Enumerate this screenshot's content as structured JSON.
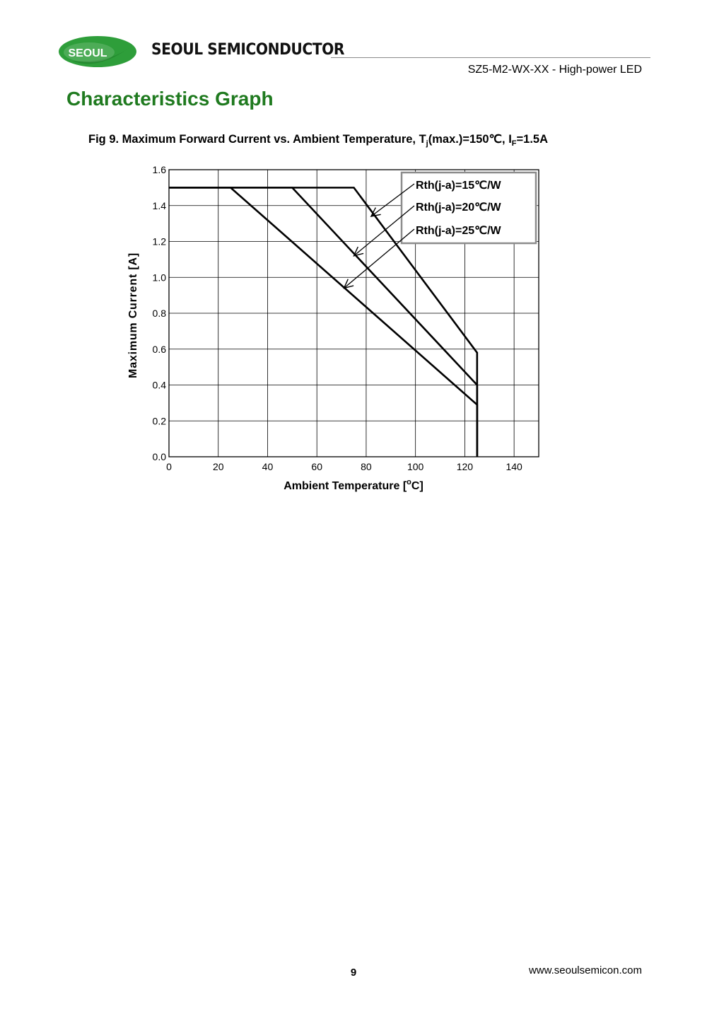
{
  "header": {
    "logo_text": "SEOUL",
    "brand": "SEOUL SEMICONDUCTOR",
    "doc_title": "SZ5-M2-WX-XX - High-power LED",
    "colors": {
      "logo_green": "#2e9e3a",
      "title_green": "#1f7a1f"
    }
  },
  "section_title": "Characteristics Graph",
  "figure": {
    "caption_prefix": "Fig 9. Maximum Forward Current vs. Ambient Temperature, T",
    "caption_sub1": "j",
    "caption_mid": "(max.)=150℃, I",
    "caption_sub2": "F",
    "caption_suffix": "=1.5A"
  },
  "chart_data": {
    "type": "line",
    "xlabel_main": "Ambient Temperature [",
    "xlabel_sup": "o",
    "xlabel_end": "C]",
    "ylabel": "Maximum Current [A]",
    "xlim": [
      0,
      150
    ],
    "ylim": [
      0,
      1.6
    ],
    "x_ticks": [
      0,
      20,
      40,
      60,
      80,
      100,
      120,
      140
    ],
    "y_ticks": [
      "0.0",
      "0.2",
      "0.4",
      "0.6",
      "0.8",
      "1.0",
      "1.2",
      "1.4",
      "1.6"
    ],
    "grid": true,
    "legend_position": "top-right",
    "series": [
      {
        "name": "Rth(j-a)=15℃/W",
        "x": [
          0,
          75,
          125,
          125
        ],
        "y": [
          1.5,
          1.5,
          0.58,
          0
        ]
      },
      {
        "name": "Rth(j-a)=20℃/W",
        "x": [
          0,
          50,
          125,
          125
        ],
        "y": [
          1.5,
          1.5,
          0.4,
          0
        ]
      },
      {
        "name": "Rth(j-a)=25℃/W",
        "x": [
          0,
          25,
          125,
          125
        ],
        "y": [
          1.5,
          1.5,
          0.29,
          0
        ]
      }
    ],
    "annotation_targets": [
      {
        "series": 0,
        "x": 82,
        "y": 1.34
      },
      {
        "series": 1,
        "x": 75,
        "y": 1.12
      },
      {
        "series": 2,
        "x": 71,
        "y": 0.94
      }
    ]
  },
  "footer": {
    "page_number": "9",
    "website": "www.seoulsemicon.com"
  }
}
